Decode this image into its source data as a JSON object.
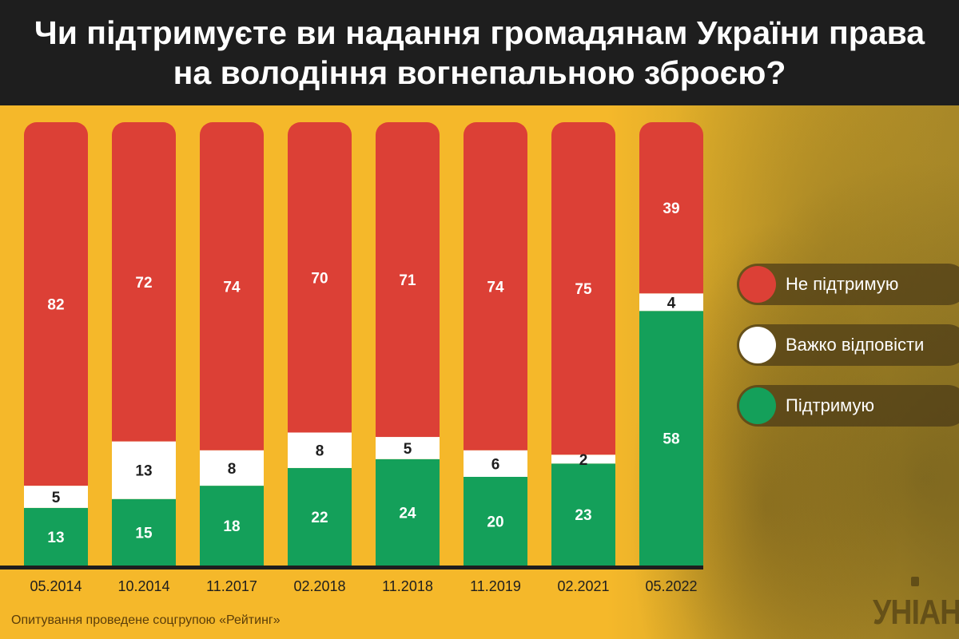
{
  "title": "Чи підтримуєте ви надання громадянам України права на володіння вогнепальною зброєю?",
  "source": "Опитування проведене соцгрупою «Рейтинг»",
  "logo": "УНІАН",
  "colors": {
    "header_bg": "#1e1e1e",
    "background": "#f5b82a",
    "not_support": "#dc4036",
    "hard_to_say": "#ffffff",
    "support": "#14a05a"
  },
  "legend": [
    {
      "label": "Не підтримую",
      "color": "#dc4036"
    },
    {
      "label": "Важко відповісти",
      "color": "#ffffff"
    },
    {
      "label": "Підтримую",
      "color": "#14a05a"
    }
  ],
  "chart_data": {
    "type": "bar",
    "stacked": true,
    "categories": [
      "05.2014",
      "10.2014",
      "11.2017",
      "02.2018",
      "11.2018",
      "11.2019",
      "02.2021",
      "05.2022"
    ],
    "series": [
      {
        "name": "Підтримую",
        "color": "#14a05a",
        "values": [
          13,
          15,
          18,
          22,
          24,
          20,
          23,
          58
        ]
      },
      {
        "name": "Важко відповісти",
        "color": "#ffffff",
        "values": [
          5,
          13,
          8,
          8,
          5,
          6,
          2,
          4
        ]
      },
      {
        "name": "Не підтримую",
        "color": "#dc4036",
        "values": [
          82,
          72,
          74,
          70,
          71,
          74,
          75,
          39
        ]
      }
    ],
    "legend_position": "right"
  }
}
